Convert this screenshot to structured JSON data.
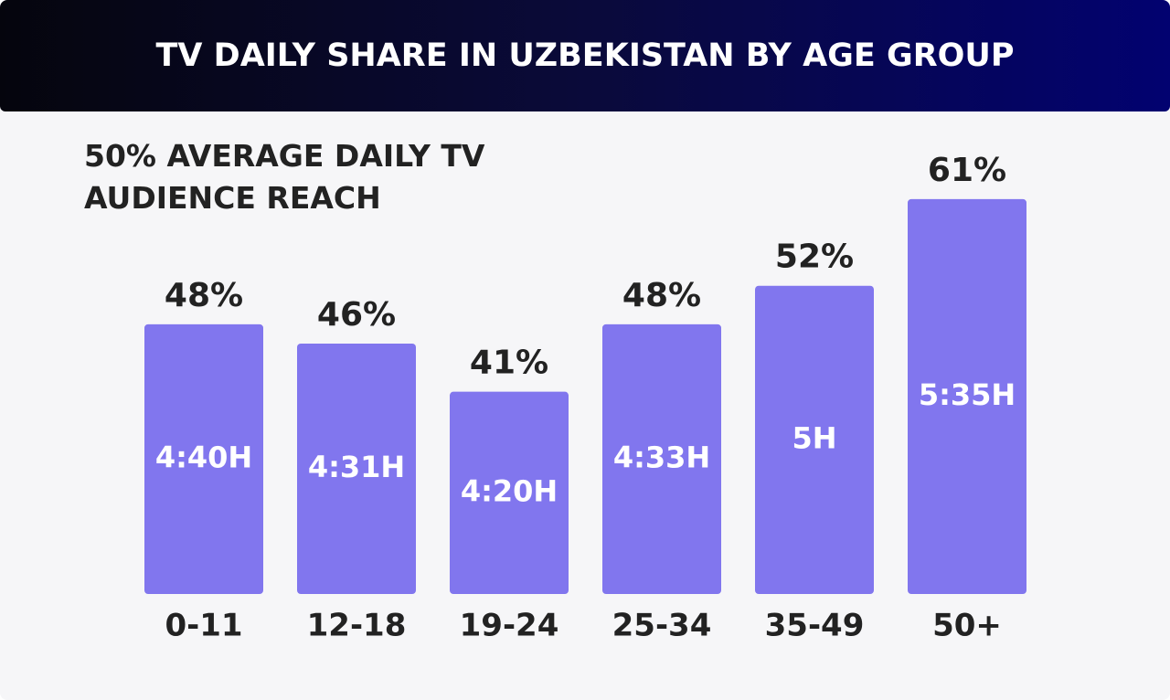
{
  "chart_data": {
    "type": "bar",
    "title": "TV DAILY SHARE IN UZBEKISTAN BY AGE GROUP",
    "subtitle": "50% AVERAGE DAILY TV AUDIENCE REACH",
    "categories": [
      "0-11",
      "12-18",
      "19-24",
      "25-34",
      "35-49",
      "50+"
    ],
    "values": [
      48,
      46,
      41,
      48,
      52,
      61
    ],
    "value_labels": [
      "48%",
      "46%",
      "41%",
      "48%",
      "52%",
      "61%"
    ],
    "time_labels": [
      "4:40H",
      "4:31H",
      "4:20H",
      "4:33H",
      "5H",
      "5:35H"
    ],
    "color": "#8176ee",
    "ylim": [
      20,
      70
    ]
  }
}
